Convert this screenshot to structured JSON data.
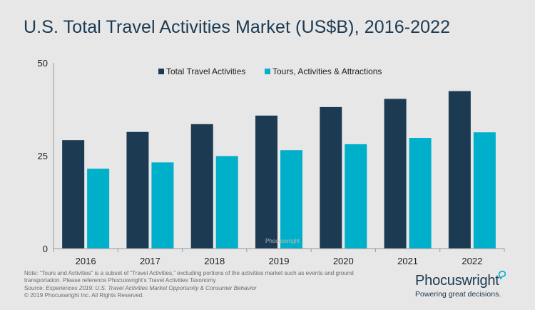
{
  "chart_data": {
    "type": "bar",
    "title": "U.S. Total Travel Activities Market (US$B), 2016-2022",
    "categories": [
      "2016",
      "2017",
      "2018",
      "2019",
      "2020",
      "2021",
      "2022"
    ],
    "series": [
      {
        "name": "Total Travel Activities",
        "color": "#1c3a52",
        "values": [
          29.2,
          31.4,
          33.5,
          35.8,
          38.1,
          40.3,
          42.4
        ]
      },
      {
        "name": "Tours, Activities & Attractions",
        "color": "#00afca",
        "values": [
          21.5,
          23.2,
          24.9,
          26.5,
          28.1,
          29.8,
          31.3
        ]
      }
    ],
    "yticks": [
      0,
      25,
      50
    ],
    "ylim": [
      0,
      50
    ],
    "grid": false,
    "legend": "top",
    "watermark": "Phocuswright"
  },
  "footer": {
    "note_line1": "Note: “Tours and Activities” is a subset of “Travel Activities,” excluding portions of the activities market such as events and ground",
    "note_line2": "transportation. Please reference Phocuswright’s Travel Activities Taxonomy",
    "source_prefix": "Source: ",
    "source_italic": "Experiences 2019: U.S. Travel Activities Market Opportunity & Consumer Behavior",
    "copyright": "© 2019  Phocuswright Inc. All Rights Reserved."
  },
  "brand": {
    "name": "Phocuswright",
    "tagline": "Powering great decisions."
  }
}
